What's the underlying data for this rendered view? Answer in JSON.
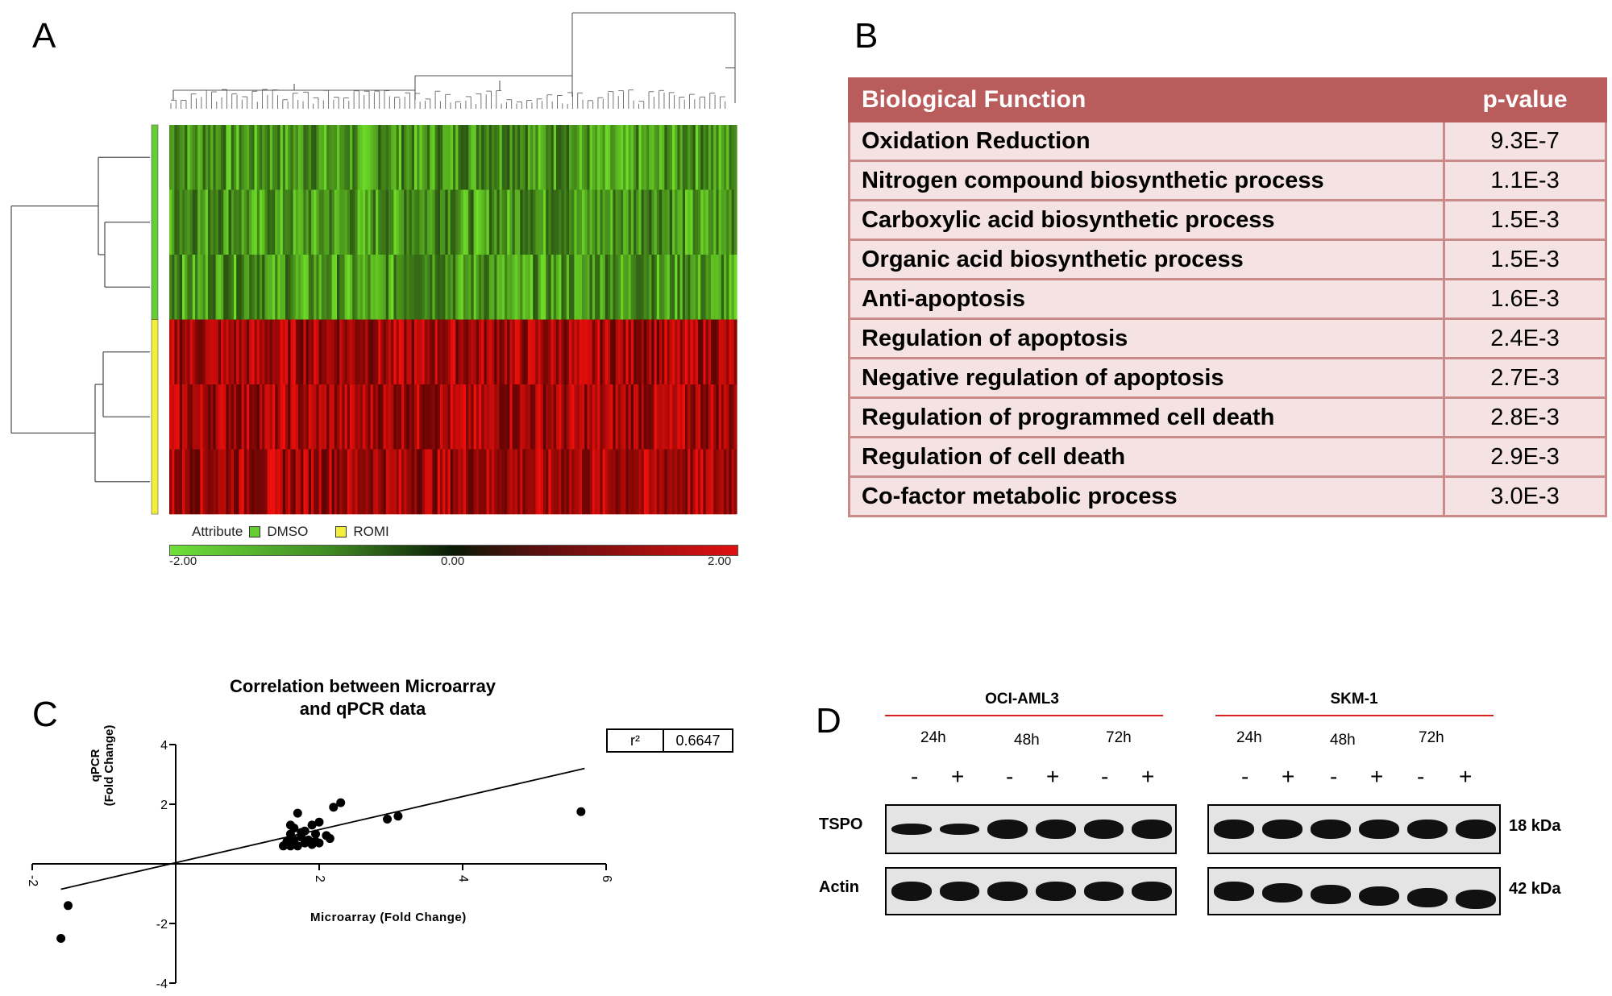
{
  "panel_letters": {
    "a": "A",
    "b": "B",
    "c": "C",
    "d": "D"
  },
  "heatmap": {
    "legend_title": "Attribute",
    "legend_items": [
      {
        "label": "DMSO",
        "color": "#66cc33"
      },
      {
        "label": "ROMI",
        "color": "#f2ee3a"
      }
    ],
    "scale": {
      "min": "-2.00",
      "mid": "0.00",
      "max": "2.00"
    },
    "low_color": "#6fe03a",
    "high_color": "#e01010"
  },
  "table": {
    "headers": {
      "function": "Biological Function",
      "pvalue": "p-value"
    },
    "rows": [
      {
        "function": "Oxidation Reduction",
        "pvalue": "9.3E-7"
      },
      {
        "function": "Nitrogen compound biosynthetic process",
        "pvalue": "1.1E-3"
      },
      {
        "function": "Carboxylic acid biosynthetic process",
        "pvalue": "1.5E-3"
      },
      {
        "function": "Organic acid biosynthetic process",
        "pvalue": "1.5E-3"
      },
      {
        "function": "Anti-apoptosis",
        "pvalue": "1.6E-3"
      },
      {
        "function": "Regulation of apoptosis",
        "pvalue": "2.4E-3"
      },
      {
        "function": "Negative regulation of apoptosis",
        "pvalue": "2.7E-3"
      },
      {
        "function": "Regulation of programmed cell death",
        "pvalue": "2.8E-3"
      },
      {
        "function": "Regulation of cell death",
        "pvalue": "2.9E-3"
      },
      {
        "function": "Co-factor metabolic process",
        "pvalue": "3.0E-3"
      }
    ],
    "header_color": "#b85c5c",
    "row_color": "#f5e2e2"
  },
  "chart_data": {
    "type": "scatter",
    "title_line1": "Correlation between Microarray",
    "title_line2": "and qPCR data",
    "xlabel": "Microarray (Fold Change)",
    "ylabel_line1": "qPCR",
    "ylabel_line2": "(Fold Change)",
    "xlim": [
      -2,
      6
    ],
    "ylim": [
      -4,
      4
    ],
    "xticks": [
      "-2",
      "2",
      "4",
      "6"
    ],
    "yticks": [
      "4",
      "2",
      "-2",
      "-4"
    ],
    "r2_label": "r²",
    "r2_value": "0.6647",
    "fit_line": [
      [
        -1.6,
        -0.85
      ],
      [
        5.7,
        3.2
      ]
    ],
    "points": [
      [
        -1.6,
        -2.5
      ],
      [
        -1.5,
        -1.4
      ],
      [
        1.5,
        0.6
      ],
      [
        1.55,
        0.75
      ],
      [
        1.6,
        0.6
      ],
      [
        1.6,
        1.0
      ],
      [
        1.65,
        0.8
      ],
      [
        1.65,
        1.2
      ],
      [
        1.7,
        0.6
      ],
      [
        1.7,
        1.7
      ],
      [
        1.75,
        0.9
      ],
      [
        1.8,
        0.7
      ],
      [
        1.8,
        1.1
      ],
      [
        1.85,
        0.8
      ],
      [
        1.9,
        1.3
      ],
      [
        1.9,
        0.65
      ],
      [
        1.95,
        1.0
      ],
      [
        2.0,
        1.4
      ],
      [
        2.0,
        0.7
      ],
      [
        2.1,
        0.95
      ],
      [
        2.15,
        0.85
      ],
      [
        2.2,
        1.9
      ],
      [
        2.3,
        2.05
      ],
      [
        1.6,
        1.3
      ],
      [
        1.75,
        1.05
      ],
      [
        1.55,
        0.65
      ],
      [
        1.95,
        0.75
      ],
      [
        2.95,
        1.5
      ],
      [
        3.1,
        1.6
      ],
      [
        5.65,
        1.75
      ]
    ]
  },
  "blot": {
    "cell_lines": [
      "OCI-AML3",
      "SKM-1"
    ],
    "times": [
      "24h",
      "48h",
      "72h"
    ],
    "signs": [
      "-",
      "+",
      "-",
      "+",
      "-",
      "+"
    ],
    "rows": [
      {
        "label": "TSPO",
        "kda": "18 kDa"
      },
      {
        "label": "Actin",
        "kda": "42 kDa"
      }
    ]
  }
}
